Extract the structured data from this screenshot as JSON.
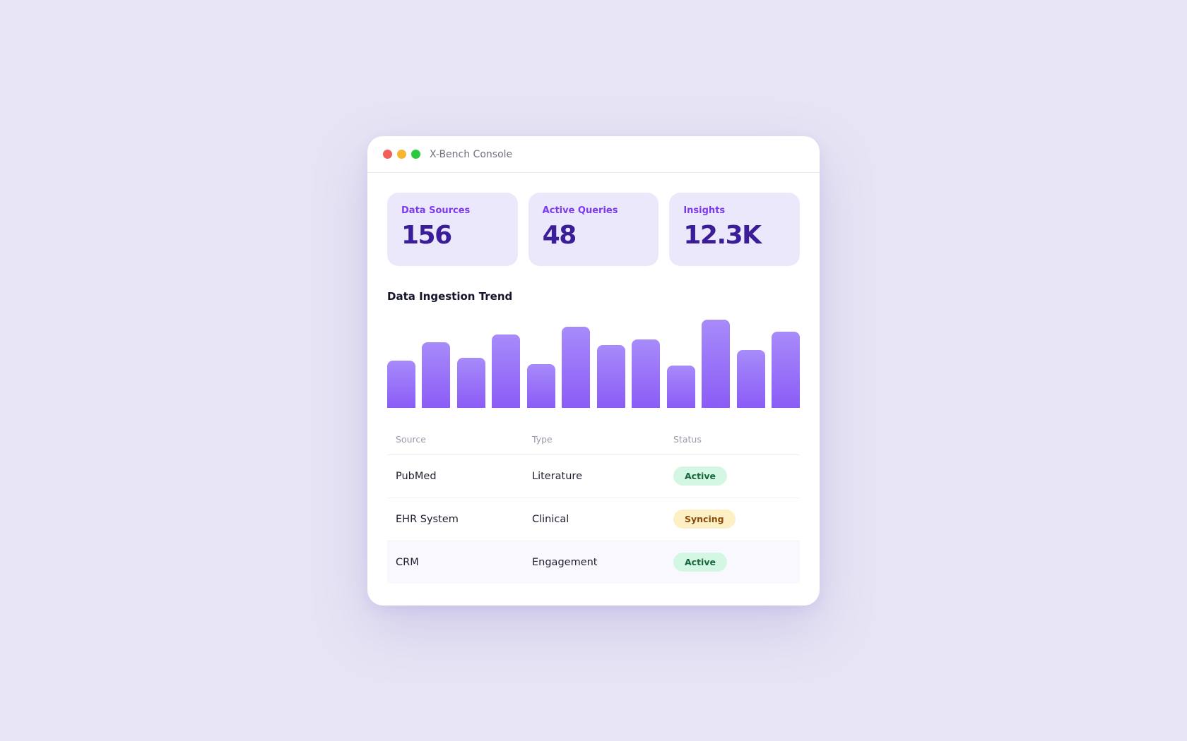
{
  "window": {
    "title": "X-Bench Console"
  },
  "stats": [
    {
      "label": "Data Sources",
      "value": "156"
    },
    {
      "label": "Active Queries",
      "value": "48"
    },
    {
      "label": "Insights",
      "value": "12.3K"
    }
  ],
  "chart_data": {
    "type": "bar",
    "title": "Data Ingestion Trend",
    "values": [
      55,
      76,
      58,
      85,
      51,
      94,
      73,
      79,
      49,
      102,
      67,
      88
    ],
    "color": "#8b5cf6"
  },
  "table": {
    "headers": [
      "Source",
      "Type",
      "Status"
    ],
    "rows": [
      {
        "source": "PubMed",
        "type": "Literature",
        "status": "Active",
        "status_color": "#17673e"
      },
      {
        "source": "EHR System",
        "type": "Clinical",
        "status": "Syncing",
        "status_color": "#8a4a0e"
      },
      {
        "source": "CRM",
        "type": "Engagement",
        "status": "Active",
        "status_color": "#17673e"
      }
    ]
  }
}
